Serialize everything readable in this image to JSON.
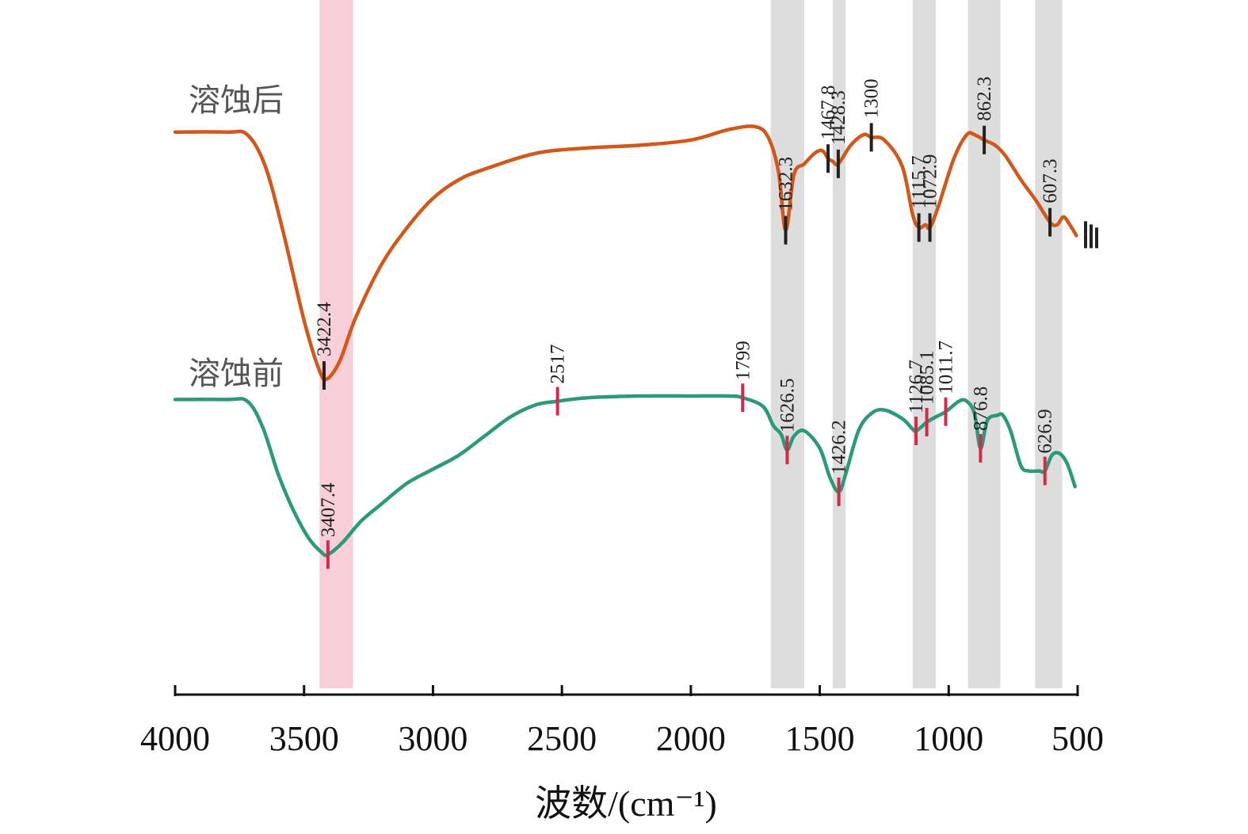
{
  "chart_data": {
    "type": "line",
    "xlabel": "波数/(cm⁻¹)",
    "xlim": [
      4000,
      500
    ],
    "x_reversed": true,
    "xticks": [
      4000,
      3500,
      3000,
      2500,
      2000,
      1500,
      1000,
      500
    ],
    "colors": {
      "after": "#d4571a",
      "before": "#2a9a7a",
      "after_marker": "#222222",
      "before_marker": "#d42a4a",
      "pink_band": "#f7c5d2",
      "gray_band": "#d9d9d9"
    },
    "bands": [
      {
        "kind": "pink",
        "from": 3440,
        "to": 3310
      },
      {
        "kind": "gray",
        "from": 1690,
        "to": 1560
      },
      {
        "kind": "gray",
        "from": 1450,
        "to": 1400
      },
      {
        "kind": "gray",
        "from": 1140,
        "to": 1050
      },
      {
        "kind": "gray",
        "from": 925,
        "to": 800
      },
      {
        "kind": "gray",
        "from": 665,
        "to": 560
      }
    ],
    "series": [
      {
        "key": "after",
        "name": "溶蚀后",
        "curve": [
          [
            4000,
            0.02
          ],
          [
            3800,
            0.02
          ],
          [
            3720,
            0.03
          ],
          [
            3650,
            0.15
          ],
          [
            3580,
            0.4
          ],
          [
            3500,
            0.73
          ],
          [
            3440,
            0.92
          ],
          [
            3410,
            0.95
          ],
          [
            3360,
            0.88
          ],
          [
            3300,
            0.72
          ],
          [
            3200,
            0.52
          ],
          [
            3100,
            0.38
          ],
          [
            3000,
            0.27
          ],
          [
            2900,
            0.2
          ],
          [
            2800,
            0.16
          ],
          [
            2600,
            0.1
          ],
          [
            2400,
            0.08
          ],
          [
            2200,
            0.07
          ],
          [
            2000,
            0.05
          ],
          [
            1850,
            0.01
          ],
          [
            1750,
            0.0
          ],
          [
            1700,
            0.04
          ],
          [
            1660,
            0.17
          ],
          [
            1632.3,
            0.39
          ],
          [
            1600,
            0.18
          ],
          [
            1560,
            0.14
          ],
          [
            1520,
            0.1
          ],
          [
            1490,
            0.09
          ],
          [
            1467.8,
            0.12
          ],
          [
            1450,
            0.13
          ],
          [
            1428.3,
            0.14
          ],
          [
            1380,
            0.07
          ],
          [
            1330,
            0.03
          ],
          [
            1300,
            0.04
          ],
          [
            1250,
            0.05
          ],
          [
            1180,
            0.15
          ],
          [
            1140,
            0.33
          ],
          [
            1115.7,
            0.38
          ],
          [
            1090,
            0.37
          ],
          [
            1072.9,
            0.38
          ],
          [
            1040,
            0.3
          ],
          [
            980,
            0.12
          ],
          [
            930,
            0.03
          ],
          [
            900,
            0.03
          ],
          [
            862.3,
            0.05
          ],
          [
            820,
            0.07
          ],
          [
            780,
            0.11
          ],
          [
            720,
            0.2
          ],
          [
            660,
            0.28
          ],
          [
            607.3,
            0.36
          ],
          [
            580,
            0.37
          ],
          [
            555,
            0.34
          ],
          [
            530,
            0.37
          ],
          [
            505,
            0.41
          ]
        ],
        "peaks": [
          3422.4,
          1632.3,
          1467.8,
          1428.3,
          1300,
          1115.7,
          1072.9,
          862.3,
          607.3
        ],
        "peak_labels": [
          "3422.4",
          "1632.3",
          "1467.8",
          "1428.3",
          "1300",
          "1115.7",
          "1072.9",
          "862.3",
          "607.3"
        ]
      },
      {
        "key": "before",
        "name": "溶蚀前",
        "curve": [
          [
            4000,
            0.02
          ],
          [
            3800,
            0.02
          ],
          [
            3720,
            0.03
          ],
          [
            3660,
            0.18
          ],
          [
            3600,
            0.45
          ],
          [
            3540,
            0.66
          ],
          [
            3480,
            0.82
          ],
          [
            3430,
            0.9
          ],
          [
            3407.4,
            0.91
          ],
          [
            3350,
            0.84
          ],
          [
            3280,
            0.72
          ],
          [
            3200,
            0.62
          ],
          [
            3100,
            0.5
          ],
          [
            3000,
            0.42
          ],
          [
            2900,
            0.34
          ],
          [
            2800,
            0.23
          ],
          [
            2700,
            0.12
          ],
          [
            2600,
            0.05
          ],
          [
            2517,
            0.03
          ],
          [
            2400,
            0.01
          ],
          [
            2200,
            0.0
          ],
          [
            2000,
            0.0
          ],
          [
            1850,
            0.0
          ],
          [
            1799,
            0.01
          ],
          [
            1720,
            0.06
          ],
          [
            1680,
            0.17
          ],
          [
            1650,
            0.22
          ],
          [
            1626.5,
            0.31
          ],
          [
            1600,
            0.23
          ],
          [
            1560,
            0.2
          ],
          [
            1500,
            0.3
          ],
          [
            1460,
            0.47
          ],
          [
            1426.2,
            0.55
          ],
          [
            1400,
            0.45
          ],
          [
            1350,
            0.2
          ],
          [
            1300,
            0.1
          ],
          [
            1250,
            0.08
          ],
          [
            1180,
            0.13
          ],
          [
            1140,
            0.19
          ],
          [
            1126.7,
            0.2
          ],
          [
            1100,
            0.17
          ],
          [
            1085.1,
            0.15
          ],
          [
            1050,
            0.12
          ],
          [
            1011.7,
            0.09
          ],
          [
            960,
            0.03
          ],
          [
            930,
            0.03
          ],
          [
            900,
            0.1
          ],
          [
            876.8,
            0.3
          ],
          [
            850,
            0.14
          ],
          [
            810,
            0.11
          ],
          [
            790,
            0.11
          ],
          [
            760,
            0.2
          ],
          [
            720,
            0.4
          ],
          [
            690,
            0.43
          ],
          [
            650,
            0.43
          ],
          [
            626.9,
            0.43
          ],
          [
            600,
            0.34
          ],
          [
            570,
            0.33
          ],
          [
            540,
            0.39
          ],
          [
            510,
            0.52
          ]
        ],
        "peaks": [
          3407.4,
          2517,
          1799,
          1626.5,
          1426.2,
          1126.7,
          1085.1,
          1011.7,
          876.8,
          626.9
        ],
        "peak_labels": [
          "3407.4",
          "2517",
          "1799",
          "1626.5",
          "1426.2",
          "1126.7",
          "1085.1",
          "1011.7",
          "876.8",
          "626.9"
        ]
      }
    ]
  }
}
